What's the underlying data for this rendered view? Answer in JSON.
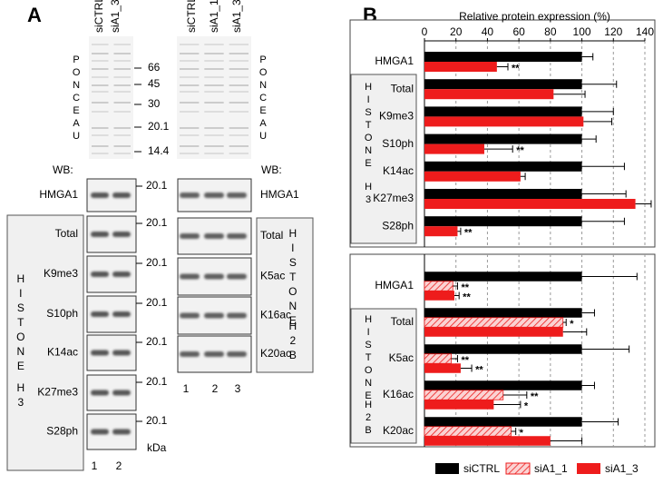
{
  "panel_a": {
    "label": "A",
    "left": {
      "lanes": [
        "siCTRL",
        "siA1_3"
      ],
      "ponceau": "PONCEAU",
      "markers": [
        "66",
        "45",
        "30",
        "20.1",
        "14.4"
      ],
      "wb": "WB:",
      "blots": [
        {
          "label": "HMGA1",
          "marker": "20.1"
        },
        {
          "label": "Total",
          "marker": "20.1"
        },
        {
          "label": "K9me3",
          "marker": "20.1"
        },
        {
          "label": "S10ph",
          "marker": "20.1"
        },
        {
          "label": "K14ac",
          "marker": "20.1"
        },
        {
          "label": "K27me3",
          "marker": "20.1"
        },
        {
          "label": "S28ph",
          "marker": "20.1"
        }
      ],
      "group": [
        "HISTONE",
        "H3"
      ],
      "unit": "kDa",
      "lane_numbers": [
        "1",
        "2"
      ]
    },
    "right": {
      "lanes": [
        "siCTRL",
        "siA1_1",
        "siA1_3"
      ],
      "ponceau": "PONCEAU",
      "wb": "WB:",
      "blots": [
        {
          "label": "HMGA1"
        },
        {
          "label": "Total"
        },
        {
          "label": "K5ac"
        },
        {
          "label": "K16ac"
        },
        {
          "label": "K20ac"
        }
      ],
      "group": [
        "HISTONE",
        "H2B"
      ],
      "lane_numbers": [
        "1",
        "2",
        "3"
      ]
    }
  },
  "panel_b_label": "B",
  "chart_data": [
    {
      "type": "bar",
      "orientation": "horizontal",
      "xlabel": "Relative protein expression (%)",
      "xlim": [
        0,
        140
      ],
      "xticks": [
        0,
        20,
        40,
        60,
        80,
        100,
        120,
        140
      ],
      "grid": true,
      "group": [
        "HISTONE",
        "H3"
      ],
      "categories": [
        "HMGA1",
        "Total",
        "K9me3",
        "S10ph",
        "K14ac",
        "K27me3",
        "S28ph"
      ],
      "series": [
        {
          "name": "siCTRL",
          "color": "#000000",
          "values": [
            100,
            100,
            100,
            100,
            100,
            100,
            100
          ],
          "errors": [
            7,
            22,
            20,
            9,
            27,
            28,
            27
          ],
          "significance": [
            null,
            null,
            null,
            null,
            null,
            null,
            null
          ]
        },
        {
          "name": "siA1_3",
          "color": "#ee1c1c",
          "values": [
            46,
            82,
            101,
            38,
            61,
            134,
            21
          ],
          "errors": [
            7,
            20,
            18,
            18,
            3,
            10,
            2
          ],
          "significance": [
            "**",
            null,
            null,
            "**",
            null,
            null,
            "**"
          ]
        }
      ]
    },
    {
      "type": "bar",
      "orientation": "horizontal",
      "xlim": [
        0,
        140
      ],
      "grid": true,
      "group": [
        "HISTONE",
        "H2B"
      ],
      "legend": "bottom",
      "categories": [
        "HMGA1",
        "Total",
        "K5ac",
        "K16ac",
        "K20ac"
      ],
      "series": [
        {
          "name": "siCTRL",
          "color": "#000000",
          "values": [
            100,
            100,
            100,
            100,
            100
          ],
          "errors": [
            35,
            8,
            30,
            8,
            23
          ],
          "significance": [
            null,
            null,
            null,
            null,
            null
          ]
        },
        {
          "name": "siA1_1",
          "color": "#ee1c1c",
          "pattern": "hatched",
          "values": [
            18,
            88,
            17,
            50,
            55
          ],
          "errors": [
            3,
            2,
            4,
            15,
            3
          ],
          "significance": [
            "**",
            "*",
            "**",
            "**",
            "*"
          ]
        },
        {
          "name": "siA1_3",
          "color": "#ee1c1c",
          "values": [
            19,
            88,
            23,
            44,
            80
          ],
          "errors": [
            3,
            15,
            7,
            17,
            20
          ],
          "significance": [
            "**",
            null,
            "**",
            "*",
            null
          ]
        }
      ]
    }
  ]
}
